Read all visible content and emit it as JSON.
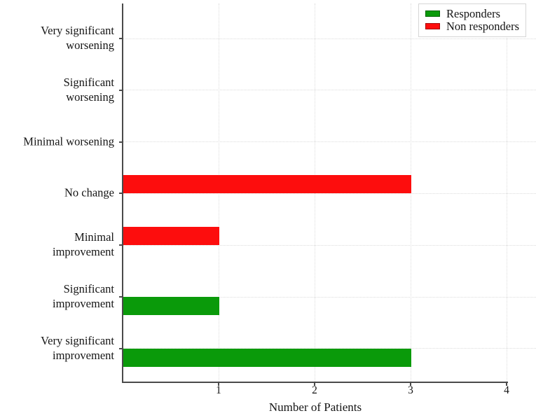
{
  "chart_data": {
    "type": "bar",
    "orientation": "horizontal",
    "title": "",
    "xlabel": "Number of Patients",
    "ylabel": "",
    "xlim": [
      0,
      4
    ],
    "xticks": [
      1,
      2,
      3,
      4
    ],
    "grid": "dotted",
    "legend_position": "top-right",
    "categories": [
      "Very significant worsening",
      "Significant worsening",
      "Minimal worsening",
      "No change",
      "Minimal improvement",
      "Significant improvement",
      "Very significant improvement"
    ],
    "series": [
      {
        "name": "Responders",
        "color": "#0a9a0a",
        "values": [
          0,
          0,
          0,
          0,
          0,
          1,
          3
        ]
      },
      {
        "name": "Non responders",
        "color": "#fd0d0d",
        "values": [
          0,
          0,
          0,
          3,
          1,
          0,
          0
        ]
      }
    ]
  }
}
